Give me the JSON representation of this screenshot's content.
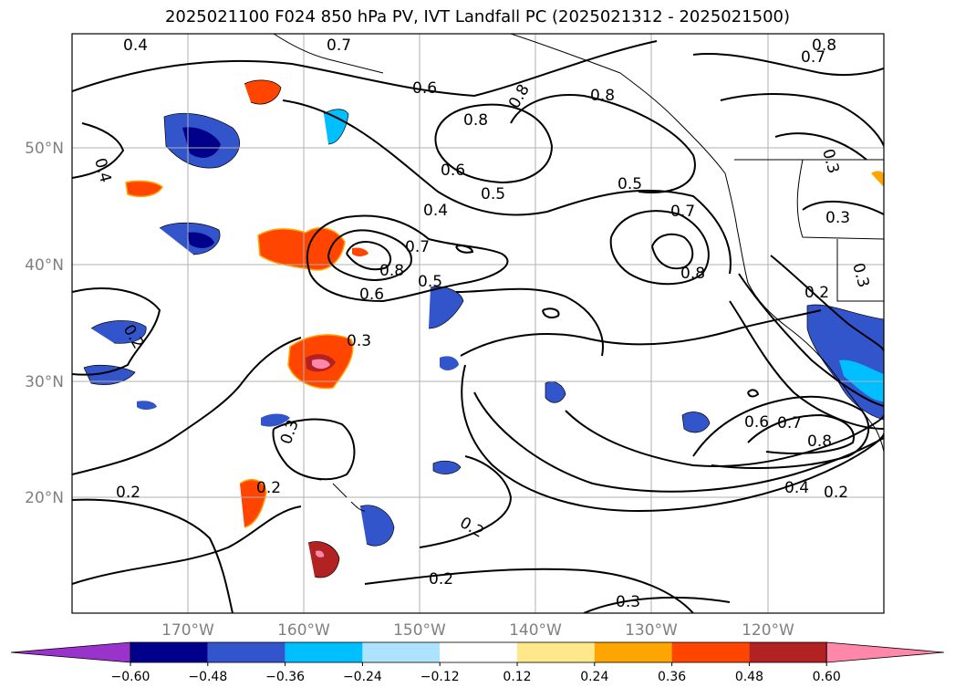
{
  "title": "2025021100 F024 850 hPa PV, IVT Landfall PC (2025021312 - 2025021500)",
  "lat_labels": [
    "50°N",
    "40°N",
    "30°N",
    "20°N"
  ],
  "lon_labels": [
    "170°W",
    "160°W",
    "150°W",
    "140°W",
    "130°W",
    "120°W"
  ],
  "colorbar": {
    "ticks": [
      "−0.60",
      "−0.48",
      "−0.36",
      "−0.24",
      "−0.12",
      "0.12",
      "0.24",
      "0.36",
      "0.48",
      "0.60"
    ],
    "colors": [
      "#9933cc",
      "#00008b",
      "#3355cc",
      "#00bfff",
      "#aee3ff",
      "#ffffff",
      "#ffe88a",
      "#ffa500",
      "#ff4500",
      "#b22222",
      "#ff88aa"
    ]
  },
  "contour_labels": [
    "0.4",
    "0.4",
    "0.6",
    "0.8",
    "0.8",
    "0.8",
    "0.7",
    "0.6",
    "0.5",
    "0.5",
    "0.4",
    "0.7",
    "0.8",
    "0.6",
    "0.5",
    "0.7",
    "0.8",
    "0.3",
    "0.2",
    "0.3",
    "0.3",
    "0.2",
    "0.2",
    "0.2",
    "0.3",
    "0.2",
    "0.6",
    "0.7",
    "0.8",
    "0.4",
    "0.2",
    "0.3",
    "0.3",
    "0.2",
    "0.8",
    "0.7"
  ]
}
